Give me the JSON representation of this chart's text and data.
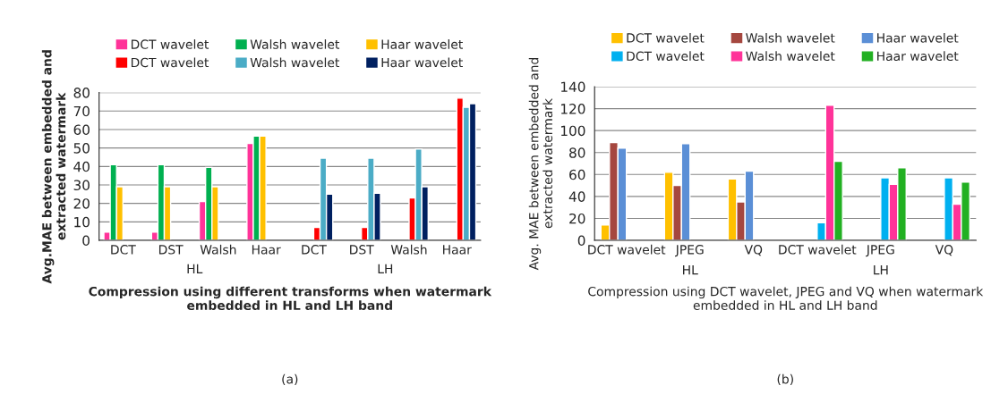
{
  "chart_data": [
    {
      "type": "bar",
      "xlabel": "Compression using different transforms when watermark embedded in HL and LH band",
      "ylabel": "Avg.MAE between embedded and extracted watermark",
      "categories": [
        "DCT",
        "DST",
        "Walsh",
        "Haar",
        "DCT",
        "DST",
        "Walsh",
        "Haar"
      ],
      "series": [
        {
          "name": "DCT wavelet",
          "color": "#ff3399",
          "values": [
            4.5,
            4.5,
            21,
            52.5,
            null,
            null,
            null,
            null
          ]
        },
        {
          "name": "Walsh wavelet",
          "color": "#00b050",
          "values": [
            41,
            41,
            39.5,
            56.5,
            null,
            null,
            null,
            null
          ]
        },
        {
          "name": "Haar wavelet",
          "color": "#ffc000",
          "values": [
            29,
            29,
            29,
            56.5,
            null,
            null,
            null,
            null
          ]
        },
        {
          "name": "DCT wavelet",
          "color": "#ff0000",
          "values": [
            null,
            null,
            null,
            null,
            7,
            7,
            23,
            77
          ]
        },
        {
          "name": "Walsh wavelet",
          "color": "#4bacc6",
          "values": [
            null,
            null,
            null,
            null,
            44.5,
            44.5,
            49.5,
            72
          ]
        },
        {
          "name": "Haar wavelet",
          "color": "#002060",
          "values": [
            null,
            null,
            null,
            null,
            25,
            25.5,
            29,
            74
          ]
        }
      ],
      "ylim": [
        0,
        80
      ],
      "yticks": [
        0,
        10,
        20,
        30,
        40,
        50,
        60,
        70,
        80
      ],
      "grid": "y",
      "legend": "top",
      "annotations": [
        "HL",
        "LH",
        "(a)"
      ]
    },
    {
      "type": "bar",
      "xlabel": "Compression using DCT wavelet, JPEG and VQ when watermark embedded in HL and LH band",
      "ylabel": "Avg. MAE between embedded and extracted watermark",
      "categories": [
        "DCT wavelet",
        "JPEG",
        "VQ",
        "DCT wavelet",
        "JPEG",
        "VQ"
      ],
      "series": [
        {
          "name": "DCT wavelet",
          "color": "#ffc000",
          "values": [
            14,
            62,
            56,
            null,
            null,
            null
          ]
        },
        {
          "name": "Walsh wavelet",
          "color": "#a5473f",
          "values": [
            89,
            50,
            35,
            null,
            null,
            null
          ]
        },
        {
          "name": "Haar wavelet",
          "color": "#5b8fd6",
          "values": [
            84,
            88,
            63,
            null,
            null,
            null
          ]
        },
        {
          "name": "DCT wavelet",
          "color": "#00b0f0",
          "values": [
            null,
            null,
            null,
            16,
            57,
            57
          ]
        },
        {
          "name": "Walsh wavelet",
          "color": "#ff3399",
          "values": [
            null,
            null,
            null,
            123,
            51,
            33
          ]
        },
        {
          "name": "Haar wavelet",
          "color": "#22b022",
          "values": [
            null,
            null,
            null,
            72,
            66,
            53
          ]
        }
      ],
      "ylim": [
        0,
        140
      ],
      "yticks": [
        0,
        20,
        40,
        60,
        80,
        100,
        120,
        140
      ],
      "grid": "y",
      "legend": "top",
      "annotations": [
        "HL",
        "LH",
        "(b)"
      ]
    }
  ]
}
